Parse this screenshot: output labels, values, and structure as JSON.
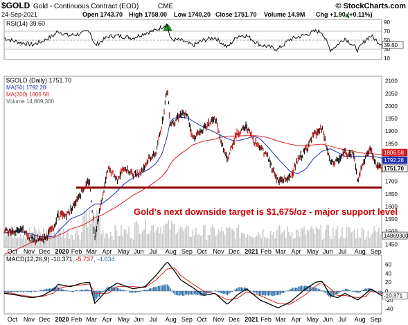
{
  "header": {
    "symbol": "$GOLD",
    "name": "Gold - Continuous Contract (EOD)",
    "exchange": "CME",
    "watermark": "© StockCharts.com",
    "date": "24-Sep-2021",
    "open": "Open 1743.70",
    "high": "High 1758.00",
    "low": "Low 1740.20",
    "close": "Close 1751.70",
    "volume": "Volume 14.9M",
    "chg": "Chg +1.90 (+0.11%)",
    "chg_arrow": "▲"
  },
  "rsi": {
    "label": "RSI(14) 39.60",
    "value_tag": "39.60",
    "ticks": [
      "90",
      "70",
      "50",
      "30",
      "10"
    ]
  },
  "price": {
    "legend_main": "$GOLD (Daily) 1751.70",
    "legend_ma50": "MA(50) 1792.28",
    "legend_ma200": "MA(200) 1806.58",
    "legend_volume": "Volume 14,869,300",
    "tag_ma200": "1806.58",
    "tag_ma50": "1792.28",
    "tag_close": "1751.70",
    "tag_volume": "14869300",
    "ticks": [
      "2100",
      "2050",
      "2000",
      "1950",
      "1900",
      "1850",
      "1800",
      "1750",
      "1700",
      "1650",
      "1600",
      "1550",
      "1500",
      "1450"
    ],
    "annotation": "Gold's next downside target is $1,675/oz - major support level"
  },
  "macd": {
    "label": "MACD(12,26,9) -10.371, -5.737, -4.634",
    "label_parts": [
      "MACD(12,26,9) -10.371, ",
      "-5.737",
      ", -4.634"
    ],
    "value_tag": "-10.371",
    "ticks": [
      "60",
      "40",
      "20",
      "0",
      "-20",
      "-40"
    ]
  },
  "x_axis_labels": [
    "Oct",
    "Nov",
    "Dec",
    "2020",
    "Feb",
    "Mar",
    "Apr",
    "May",
    "Jun",
    "Jul",
    "Aug",
    "Sep",
    "Oct",
    "Nov",
    "Dec",
    "2021",
    "Feb",
    "Mar",
    "Apr",
    "May",
    "Jun",
    "Jul",
    "Aug",
    "Sep"
  ],
  "colors": {
    "price": "#000000",
    "up_bar": "#000000",
    "down_bar": "#cc0000",
    "ma50": "#1f2fb0",
    "ma200": "#d62020",
    "support_line": "#8b0000",
    "annotation_text": "#cc0000",
    "volume": "#c8c8c8",
    "macd_hist": "#2b6fa8",
    "rsi_fill": "#2e8b2e"
  },
  "chart_data": [
    {
      "type": "line",
      "title": "RSI(14) 39.60",
      "ylim": [
        10,
        90
      ],
      "reference_lines": [
        70,
        50,
        30
      ],
      "x": [
        "2019-09-26",
        "2019-10-15",
        "2019-11-01",
        "2019-11-20",
        "2019-12-10",
        "2020-01-01",
        "2020-01-08",
        "2020-01-28",
        "2020-02-24",
        "2020-03-09",
        "2020-03-19",
        "2020-04-14",
        "2020-05-01",
        "2020-06-01",
        "2020-06-24",
        "2020-07-15",
        "2020-08-06",
        "2020-08-12",
        "2020-09-01",
        "2020-09-24",
        "2020-10-15",
        "2020-11-06",
        "2020-11-30",
        "2020-12-20",
        "2021-01-06",
        "2021-02-01",
        "2021-03-08",
        "2021-03-31",
        "2021-04-30",
        "2021-05-20",
        "2021-06-01",
        "2021-06-17",
        "2021-07-01",
        "2021-07-15",
        "2021-08-09",
        "2021-08-25",
        "2021-09-03",
        "2021-09-24"
      ],
      "series": [
        {
          "values": [
            55,
            48,
            44,
            40,
            48,
            62,
            70,
            60,
            65,
            72,
            38,
            58,
            60,
            55,
            66,
            72,
            86,
            52,
            50,
            38,
            50,
            56,
            34,
            60,
            60,
            40,
            30,
            52,
            62,
            70,
            68,
            28,
            40,
            55,
            28,
            52,
            60,
            39.6
          ]
        }
      ]
    },
    {
      "type": "line",
      "title": "$GOLD (Daily) 1751.70",
      "ylim": [
        1440,
        2110
      ],
      "x": [
        "2019-09-26",
        "2019-10-15",
        "2019-11-01",
        "2019-11-15",
        "2019-12-01",
        "2019-12-15",
        "2020-01-01",
        "2020-01-08",
        "2020-01-20",
        "2020-02-01",
        "2020-02-24",
        "2020-03-09",
        "2020-03-19",
        "2020-04-01",
        "2020-04-14",
        "2020-05-01",
        "2020-05-15",
        "2020-06-01",
        "2020-06-15",
        "2020-07-01",
        "2020-07-15",
        "2020-07-27",
        "2020-08-06",
        "2020-08-12",
        "2020-08-20",
        "2020-09-01",
        "2020-09-15",
        "2020-09-24",
        "2020-10-15",
        "2020-11-06",
        "2020-11-15",
        "2020-11-30",
        "2020-12-15",
        "2021-01-06",
        "2021-01-20",
        "2021-02-01",
        "2021-02-15",
        "2021-03-08",
        "2021-03-31",
        "2021-04-15",
        "2021-05-01",
        "2021-05-15",
        "2021-06-01",
        "2021-06-17",
        "2021-07-01",
        "2021-07-15",
        "2021-08-01",
        "2021-08-09",
        "2021-08-20",
        "2021-09-03",
        "2021-09-15",
        "2021-09-24"
      ],
      "series": [
        {
          "name": "$GOLD (Daily)",
          "values": [
            1505,
            1495,
            1515,
            1470,
            1465,
            1480,
            1520,
            1570,
            1560,
            1585,
            1665,
            1700,
            1480,
            1620,
            1750,
            1710,
            1750,
            1730,
            1735,
            1790,
            1810,
            1930,
            2075,
            1930,
            1940,
            1970,
            1960,
            1870,
            1910,
            1950,
            1880,
            1780,
            1880,
            1920,
            1860,
            1840,
            1800,
            1700,
            1715,
            1780,
            1830,
            1880,
            1910,
            1775,
            1780,
            1815,
            1810,
            1700,
            1785,
            1830,
            1760,
            1751.7
          ]
        },
        {
          "name": "MA(50)",
          "values": [
            1495,
            1500,
            1498,
            1492,
            1482,
            1478,
            1482,
            1500,
            1525,
            1550,
            1570,
            1595,
            1610,
            1610,
            1630,
            1660,
            1690,
            1715,
            1730,
            1748,
            1770,
            1810,
            1880,
            1940,
            1952,
            1955,
            1952,
            1940,
            1915,
            1895,
            1885,
            1870,
            1860,
            1870,
            1880,
            1870,
            1840,
            1790,
            1740,
            1730,
            1750,
            1790,
            1820,
            1830,
            1815,
            1800,
            1800,
            1800,
            1800,
            1800,
            1797,
            1792.28
          ]
        },
        {
          "name": "MA(200)",
          "values": [
            1410,
            1425,
            1440,
            1455,
            1465,
            1470,
            1478,
            1485,
            1495,
            1510,
            1525,
            1540,
            1555,
            1565,
            1580,
            1600,
            1620,
            1645,
            1660,
            1680,
            1700,
            1720,
            1745,
            1770,
            1790,
            1810,
            1830,
            1845,
            1860,
            1868,
            1875,
            1880,
            1880,
            1882,
            1882,
            1880,
            1875,
            1860,
            1848,
            1842,
            1842,
            1845,
            1848,
            1840,
            1832,
            1825,
            1820,
            1815,
            1812,
            1810,
            1808,
            1806.58
          ]
        }
      ],
      "annotations": [
        {
          "type": "horizontal_line",
          "y": 1675,
          "label": "Gold's next downside target is $1,675/oz - major support level"
        }
      ]
    },
    {
      "type": "line",
      "title": "MACD(12,26,9) -10.371, -5.737, -4.634",
      "ylim": [
        -50,
        75
      ],
      "x": [
        "2019-09-26",
        "2019-10-15",
        "2019-11-01",
        "2019-11-20",
        "2019-12-10",
        "2020-01-01",
        "2020-01-08",
        "2020-02-01",
        "2020-02-24",
        "2020-03-09",
        "2020-03-19",
        "2020-04-14",
        "2020-05-01",
        "2020-06-01",
        "2020-06-24",
        "2020-07-15",
        "2020-08-06",
        "2020-08-20",
        "2020-09-01",
        "2020-09-24",
        "2020-10-15",
        "2020-11-06",
        "2020-11-30",
        "2020-12-20",
        "2021-01-06",
        "2021-02-01",
        "2021-03-08",
        "2021-03-31",
        "2021-04-30",
        "2021-05-20",
        "2021-06-01",
        "2021-06-17",
        "2021-07-01",
        "2021-07-15",
        "2021-08-09",
        "2021-08-25",
        "2021-09-03",
        "2021-09-24"
      ],
      "series": [
        {
          "name": "MACD",
          "values": [
            -5,
            -8,
            -12,
            -15,
            -10,
            5,
            15,
            10,
            18,
            20,
            -28,
            5,
            18,
            5,
            10,
            35,
            66,
            45,
            25,
            8,
            -10,
            -5,
            -30,
            -8,
            5,
            -20,
            -38,
            -25,
            5,
            20,
            22,
            -10,
            -15,
            -5,
            -20,
            -5,
            5,
            -10.371
          ]
        },
        {
          "name": "Signal",
          "values": [
            -2,
            -6,
            -10,
            -13,
            -12,
            -4,
            6,
            12,
            14,
            16,
            -5,
            -5,
            10,
            10,
            8,
            25,
            50,
            52,
            35,
            16,
            0,
            -6,
            -20,
            -16,
            -2,
            -10,
            -28,
            -30,
            -8,
            12,
            20,
            5,
            -10,
            -10,
            -15,
            -12,
            0,
            -5.737
          ]
        },
        {
          "name": "Histogram",
          "values": [
            -3,
            -2,
            -2,
            -2,
            2,
            9,
            9,
            -2,
            4,
            4,
            -23,
            10,
            8,
            -5,
            2,
            10,
            16,
            -7,
            -10,
            -8,
            -10,
            1,
            -10,
            8,
            7,
            -10,
            -10,
            5,
            13,
            8,
            2,
            -15,
            -5,
            5,
            -5,
            7,
            5,
            -4.634
          ]
        }
      ]
    }
  ]
}
